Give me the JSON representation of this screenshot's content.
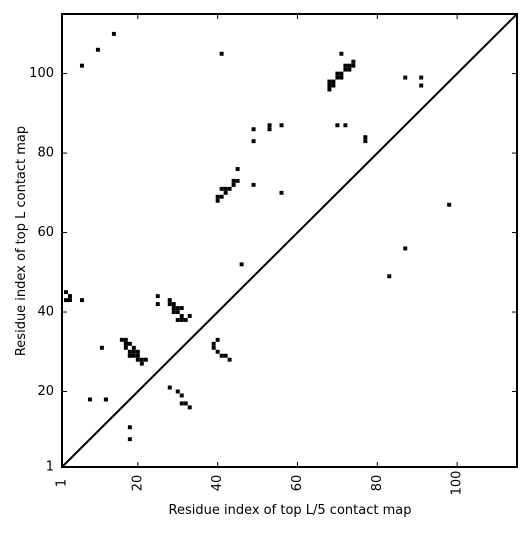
{
  "chart_data": {
    "type": "scatter",
    "title": "",
    "xlabel": "Residue index of top L/5 contact map",
    "ylabel": "Residue index of top L contact map",
    "xlim": [
      1,
      115
    ],
    "ylim": [
      1,
      115
    ],
    "x_ticks": [
      1,
      20,
      40,
      60,
      80,
      100
    ],
    "y_ticks": [
      1,
      20,
      40,
      60,
      80,
      100
    ],
    "x_tick_labels": [
      "1",
      "20",
      "40",
      "60",
      "80",
      "100"
    ],
    "y_tick_labels": [
      "1",
      "20",
      "40",
      "60",
      "80",
      "100"
    ],
    "x_tick_rotation_deg": -90,
    "grid": false,
    "legend": "none",
    "marker": "square",
    "marker_color": "#000000",
    "diagonal_line": true,
    "series": [
      {
        "x": [
          2,
          2,
          3,
          3,
          6,
          11,
          12,
          12,
          8,
          6,
          10,
          14,
          18,
          18,
          16,
          17,
          17,
          18,
          18,
          19,
          19,
          17,
          17,
          18,
          18,
          19,
          20,
          20,
          21,
          21,
          22,
          20,
          25,
          25,
          28,
          28,
          29,
          29,
          29,
          30,
          30,
          30,
          31,
          31,
          31,
          32,
          33,
          28,
          30,
          31,
          31,
          32,
          33,
          39,
          39,
          40,
          40,
          41,
          42,
          43,
          40,
          40,
          41,
          41,
          42,
          42,
          43,
          44,
          44,
          45,
          45,
          41,
          46,
          49,
          49,
          49,
          53,
          53,
          56,
          56,
          68,
          68,
          69,
          69,
          70,
          70,
          71,
          71,
          72,
          72,
          73,
          73,
          74,
          74,
          71,
          68,
          70,
          72,
          77,
          77,
          83,
          87,
          87,
          91,
          91,
          98
        ],
        "y": [
          43,
          45,
          43,
          44,
          43,
          31,
          18,
          18,
          18,
          102,
          106,
          110,
          11,
          8,
          33,
          32,
          31,
          32,
          29,
          30,
          31,
          33,
          32,
          30,
          29,
          29,
          30,
          28,
          28,
          27,
          28,
          29,
          44,
          42,
          43,
          42,
          41,
          40,
          42,
          41,
          40,
          38,
          39,
          38,
          41,
          38,
          39,
          21,
          20,
          19,
          17,
          17,
          16,
          31,
          32,
          30,
          33,
          29,
          29,
          28,
          69,
          68,
          69,
          71,
          70,
          71,
          71,
          72,
          73,
          73,
          76,
          105,
          52,
          72,
          83,
          86,
          86,
          87,
          87,
          70,
          98,
          97,
          98,
          97,
          99,
          100,
          99,
          100,
          101,
          102,
          101,
          102,
          103,
          102,
          105,
          96,
          87,
          87,
          83,
          84,
          49,
          56,
          99,
          99,
          97,
          67
        ]
      }
    ]
  }
}
